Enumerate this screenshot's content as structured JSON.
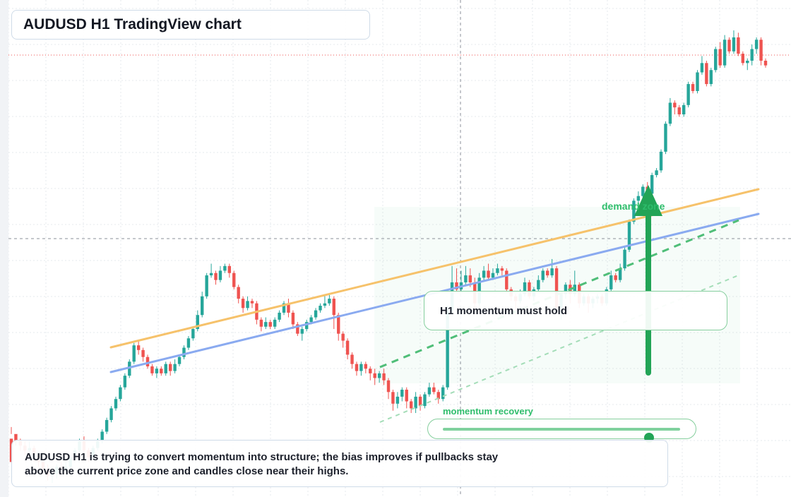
{
  "header": {
    "title": "AUDUSD H1 TradingView chart"
  },
  "annotations": {
    "note": "H1 momentum must hold",
    "zone_label": "demand zone",
    "meter_label": "momentum recovery",
    "meter_value": 0.87,
    "summary": "AUDUSD H1 is trying to convert momentum into structure; the bias improves if pullbacks stay above the current price zone and candles close near their highs."
  },
  "colors": {
    "bull": "#26a69a",
    "bear": "#ef5350",
    "accent": "#22a456",
    "trend_orange": "#f6c26b",
    "trend_blue": "#8aaaf0",
    "grid": "#e6e9ee"
  },
  "chart_data": {
    "type": "candlestick",
    "symbol": "AUDUSD",
    "timeframe": "H1",
    "title": "AUDUSD H1 TradingView chart",
    "grid": true,
    "crosshair": true,
    "ohlc": [
      [
        25,
        15,
        30,
        27
      ],
      [
        27,
        24,
        26,
        22
      ],
      [
        24,
        22,
        25,
        20
      ],
      [
        22,
        20,
        24,
        18
      ],
      [
        20,
        21,
        24,
        18
      ],
      [
        21,
        18,
        22,
        15
      ],
      [
        18,
        15,
        19,
        13
      ],
      [
        15,
        12,
        16,
        10
      ],
      [
        12,
        9,
        14,
        7
      ],
      [
        9,
        10,
        12,
        6
      ],
      [
        10,
        13,
        14,
        8
      ],
      [
        13,
        12,
        15,
        10
      ],
      [
        12,
        13,
        15,
        11
      ],
      [
        13,
        17,
        18,
        12
      ],
      [
        17,
        20,
        21,
        16
      ],
      [
        20,
        24,
        25,
        19
      ],
      [
        24,
        20,
        26,
        18
      ],
      [
        20,
        17,
        21,
        15
      ],
      [
        17,
        21,
        22,
        16
      ],
      [
        21,
        24,
        25,
        20
      ],
      [
        24,
        28,
        29,
        23
      ],
      [
        28,
        33,
        34,
        27
      ],
      [
        33,
        38,
        39,
        32
      ],
      [
        38,
        42,
        43,
        37
      ],
      [
        42,
        47,
        48,
        41
      ],
      [
        47,
        52,
        53,
        46
      ],
      [
        52,
        58,
        59,
        51
      ],
      [
        58,
        65,
        66,
        57
      ],
      [
        65,
        63,
        67,
        61
      ],
      [
        63,
        60,
        64,
        58
      ],
      [
        60,
        56,
        61,
        55
      ],
      [
        56,
        53,
        57,
        52
      ],
      [
        53,
        55,
        56,
        51
      ],
      [
        55,
        53,
        56,
        52
      ],
      [
        53,
        57,
        58,
        52
      ],
      [
        57,
        54,
        58,
        52
      ],
      [
        54,
        57,
        59,
        53
      ],
      [
        57,
        60,
        61,
        56
      ],
      [
        60,
        64,
        65,
        59
      ],
      [
        64,
        68,
        69,
        63
      ],
      [
        68,
        72,
        73,
        67
      ],
      [
        72,
        78,
        80,
        71
      ],
      [
        78,
        86,
        88,
        77
      ],
      [
        86,
        95,
        96,
        85
      ],
      [
        95,
        96,
        100,
        94
      ],
      [
        96,
        93,
        97,
        91
      ],
      [
        93,
        97,
        99,
        92
      ],
      [
        97,
        99,
        100,
        96
      ],
      [
        99,
        96,
        100,
        94
      ],
      [
        96,
        90,
        97,
        89
      ],
      [
        90,
        85,
        91,
        83
      ],
      [
        85,
        81,
        86,
        79
      ],
      [
        81,
        84,
        86,
        80
      ],
      [
        84,
        83,
        85,
        81
      ],
      [
        83,
        76,
        84,
        74
      ],
      [
        76,
        73,
        77,
        71
      ],
      [
        73,
        75,
        77,
        72
      ],
      [
        75,
        73,
        76,
        72
      ],
      [
        73,
        76,
        77,
        72
      ],
      [
        76,
        79,
        80,
        75
      ],
      [
        79,
        83,
        84,
        78
      ],
      [
        83,
        79,
        85,
        77
      ],
      [
        79,
        74,
        80,
        72
      ],
      [
        74,
        70,
        75,
        69
      ],
      [
        70,
        72,
        73,
        67
      ],
      [
        72,
        75,
        76,
        71
      ],
      [
        75,
        77,
        78,
        74
      ],
      [
        77,
        80,
        81,
        76
      ],
      [
        80,
        82,
        83,
        79
      ],
      [
        82,
        83,
        87,
        81
      ],
      [
        83,
        85,
        87,
        82
      ],
      [
        85,
        78,
        86,
        72
      ],
      [
        78,
        70,
        79,
        67
      ],
      [
        70,
        67,
        71,
        64
      ],
      [
        67,
        61,
        68,
        59
      ],
      [
        61,
        57,
        62,
        55
      ],
      [
        57,
        54,
        58,
        52
      ],
      [
        54,
        57,
        58,
        52
      ],
      [
        57,
        55,
        58,
        53
      ],
      [
        55,
        53,
        56,
        50
      ],
      [
        53,
        51,
        55,
        48
      ],
      [
        51,
        53,
        54,
        49
      ],
      [
        53,
        50,
        55,
        48
      ],
      [
        50,
        45,
        51,
        42
      ],
      [
        45,
        40,
        46,
        37
      ],
      [
        40,
        43,
        45,
        38
      ],
      [
        43,
        46,
        47,
        41
      ],
      [
        46,
        41,
        47,
        38
      ],
      [
        41,
        38,
        42,
        36
      ],
      [
        38,
        43,
        45,
        36
      ],
      [
        43,
        39,
        44,
        37
      ],
      [
        39,
        44,
        45,
        38
      ],
      [
        44,
        47,
        49,
        43
      ],
      [
        47,
        45,
        49,
        44
      ],
      [
        45,
        42,
        46,
        40
      ],
      [
        42,
        47,
        48,
        41
      ],
      [
        47,
        80,
        82,
        46
      ],
      [
        80,
        92,
        99,
        79
      ],
      [
        92,
        89,
        98,
        88
      ],
      [
        89,
        92,
        97,
        88
      ],
      [
        92,
        95,
        99,
        91
      ],
      [
        95,
        92,
        98,
        90
      ],
      [
        92,
        83,
        94,
        80
      ],
      [
        83,
        94,
        96,
        82
      ],
      [
        94,
        97,
        99,
        93
      ],
      [
        97,
        94,
        100,
        93
      ],
      [
        94,
        96,
        98,
        93
      ],
      [
        96,
        98,
        100,
        95
      ],
      [
        98,
        97,
        99,
        95
      ],
      [
        97,
        89,
        98,
        88
      ],
      [
        89,
        86,
        90,
        84
      ],
      [
        86,
        84,
        87,
        78
      ],
      [
        84,
        87,
        89,
        83
      ],
      [
        87,
        92,
        94,
        86
      ],
      [
        92,
        86,
        93,
        85
      ],
      [
        86,
        89,
        90,
        84
      ],
      [
        89,
        93,
        95,
        88
      ],
      [
        93,
        97,
        98,
        92
      ],
      [
        97,
        95,
        98,
        94
      ],
      [
        95,
        98,
        102,
        94
      ],
      [
        98,
        81,
        99,
        79
      ],
      [
        81,
        87,
        88,
        76
      ],
      [
        87,
        91,
        92,
        85
      ],
      [
        91,
        87,
        93,
        83
      ],
      [
        87,
        91,
        97,
        86
      ],
      [
        91,
        83,
        92,
        81
      ],
      [
        83,
        86,
        87,
        82
      ],
      [
        86,
        83,
        87,
        79
      ],
      [
        83,
        85,
        86,
        81
      ],
      [
        85,
        86,
        87,
        83
      ],
      [
        86,
        83,
        87,
        82
      ],
      [
        83,
        89,
        90,
        82
      ],
      [
        89,
        95,
        97,
        88
      ],
      [
        95,
        93,
        96,
        92
      ],
      [
        93,
        98,
        100,
        92
      ],
      [
        98,
        106,
        107,
        97
      ],
      [
        106,
        118,
        119,
        105
      ],
      [
        118,
        127,
        128,
        117
      ],
      [
        127,
        129,
        131,
        126
      ],
      [
        129,
        133,
        134,
        128
      ],
      [
        133,
        130,
        135,
        129
      ],
      [
        130,
        138,
        139,
        129
      ],
      [
        138,
        140,
        141,
        137
      ],
      [
        140,
        148,
        149,
        139
      ],
      [
        148,
        160,
        161,
        147
      ],
      [
        160,
        169,
        171,
        159
      ],
      [
        169,
        167,
        170,
        164
      ],
      [
        167,
        164,
        168,
        163
      ],
      [
        164,
        168,
        169,
        163
      ],
      [
        168,
        177,
        178,
        167
      ],
      [
        177,
        174,
        178,
        173
      ],
      [
        174,
        182,
        183,
        173
      ],
      [
        182,
        186,
        189,
        181
      ],
      [
        186,
        177,
        187,
        176
      ],
      [
        177,
        183,
        184,
        176
      ],
      [
        183,
        192,
        193,
        182
      ],
      [
        192,
        185,
        195,
        184
      ],
      [
        185,
        196,
        198,
        184
      ],
      [
        196,
        191,
        197,
        190
      ],
      [
        191,
        197,
        200,
        190
      ],
      [
        197,
        190,
        199,
        189
      ],
      [
        190,
        186,
        191,
        185
      ],
      [
        186,
        187,
        188,
        183
      ],
      [
        187,
        192,
        194,
        185
      ],
      [
        192,
        196,
        197,
        190
      ],
      [
        196,
        187,
        197,
        185
      ],
      [
        187,
        185,
        188,
        184
      ]
    ]
  }
}
